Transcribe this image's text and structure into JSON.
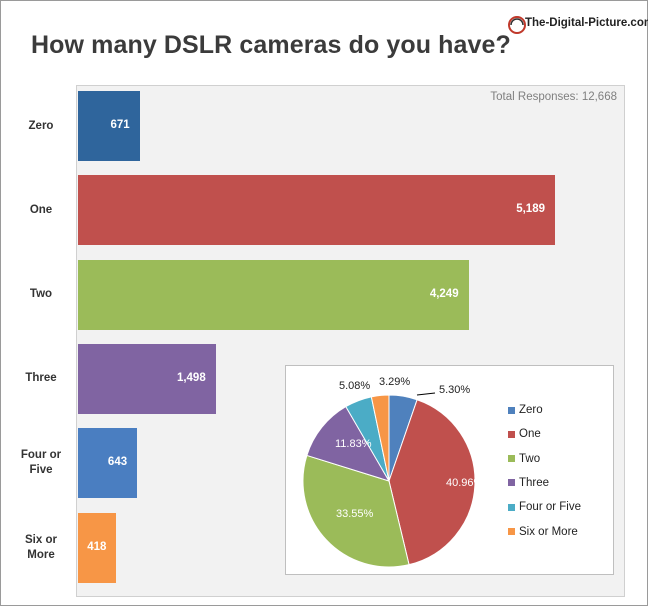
{
  "header": {
    "title": "How many DSLR cameras do you have?",
    "logo_text": "The-Digital-Picture.com"
  },
  "chart_data": [
    {
      "type": "bar",
      "orientation": "horizontal",
      "title": "How many DSLR cameras do you have?",
      "annotation": "Total Responses: 12,668",
      "categories": [
        "Zero",
        "One",
        "Two",
        "Three",
        "Four or Five",
        "Six or More"
      ],
      "values": [
        671,
        5189,
        4249,
        1498,
        643,
        418
      ],
      "value_labels": [
        "671",
        "5,189",
        "4,249",
        "1,498",
        "643",
        "418"
      ],
      "colors": [
        "#2f659c",
        "#c0504d",
        "#9bbb59",
        "#8064a2",
        "#4a7ec1",
        "#f79646"
      ],
      "grid": false
    },
    {
      "type": "pie",
      "categories": [
        "Zero",
        "One",
        "Two",
        "Three",
        "Four or Five",
        "Six or More"
      ],
      "values": [
        5.3,
        40.96,
        33.55,
        11.83,
        5.08,
        3.29
      ],
      "value_labels": [
        "5.30%",
        "40.96%",
        "33.55%",
        "11.83%",
        "5.08%",
        "3.29%"
      ],
      "colors": [
        "#4f81bd",
        "#c0504d",
        "#9bbb59",
        "#8064a2",
        "#4bacc6",
        "#f79646"
      ],
      "legend_position": "right"
    }
  ]
}
